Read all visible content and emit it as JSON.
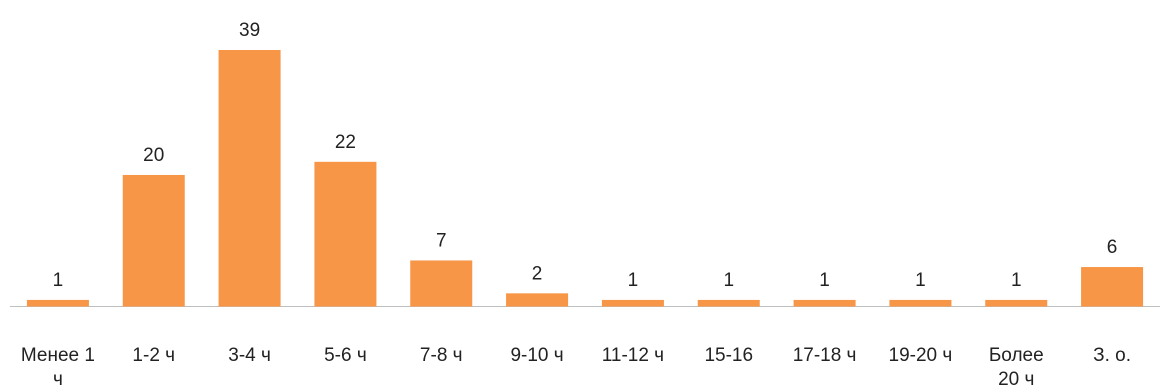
{
  "chart_data": {
    "type": "bar",
    "categories": [
      "Менее 1 ч",
      "1-2 ч",
      "3-4 ч",
      "5-6 ч",
      "7-8 ч",
      "9-10 ч",
      "11-12 ч",
      "15-16",
      "17-18 ч",
      "19-20 ч",
      "Более 20 ч",
      "З. о."
    ],
    "category_lines": [
      [
        "Менее 1",
        "ч"
      ],
      [
        "1-2 ч"
      ],
      [
        "3-4 ч"
      ],
      [
        "5-6 ч"
      ],
      [
        "7-8 ч"
      ],
      [
        "9-10 ч"
      ],
      [
        "11-12 ч"
      ],
      [
        "15-16"
      ],
      [
        "17-18 ч"
      ],
      [
        "19-20 ч"
      ],
      [
        "Более",
        "20 ч"
      ],
      [
        "З. о."
      ]
    ],
    "values": [
      1,
      20,
      39,
      22,
      7,
      2,
      1,
      1,
      1,
      1,
      1,
      6
    ],
    "title": "",
    "xlabel": "",
    "ylabel": "",
    "ylim": [
      0,
      39
    ],
    "grid": false,
    "legend": "none",
    "colors": {
      "bar": "#f79646",
      "axis": "#bfbfbf",
      "text": "#222222"
    }
  }
}
